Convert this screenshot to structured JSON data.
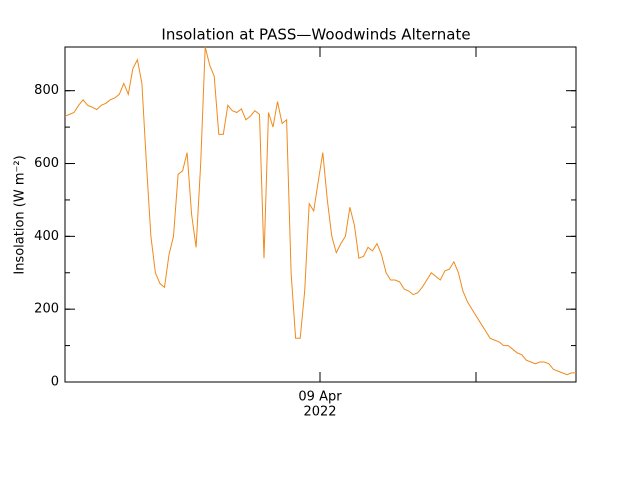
{
  "chart_data": {
    "type": "line",
    "title": "Insolation at PASS—Woodwinds Alternate",
    "y_label": "Insolation (W m⁻²)",
    "x_tick_label": [
      "09 Apr",
      "2022"
    ],
    "color": "#f08a1c",
    "ylim": [
      0,
      920
    ],
    "yticks": [
      0,
      200,
      400,
      600,
      800
    ],
    "values": [
      730,
      735,
      740,
      760,
      775,
      760,
      755,
      748,
      760,
      765,
      775,
      780,
      790,
      820,
      790,
      860,
      885,
      820,
      600,
      400,
      300,
      270,
      260,
      350,
      400,
      570,
      580,
      630,
      460,
      370,
      600,
      920,
      870,
      840,
      680,
      680,
      760,
      745,
      740,
      750,
      720,
      730,
      745,
      735,
      340,
      740,
      700,
      770,
      710,
      720,
      300,
      120,
      120,
      250,
      490,
      470,
      550,
      630,
      500,
      400,
      355,
      380,
      400,
      480,
      430,
      340,
      345,
      370,
      360,
      380,
      350,
      300,
      280,
      280,
      275,
      255,
      250,
      240,
      245,
      260,
      280,
      300,
      290,
      280,
      305,
      310,
      330,
      300,
      250,
      220,
      200,
      180,
      160,
      140,
      120,
      115,
      110,
      100,
      100,
      90,
      80,
      75,
      60,
      55,
      50,
      55,
      55,
      50,
      35,
      30,
      25,
      20,
      25,
      25
    ]
  }
}
